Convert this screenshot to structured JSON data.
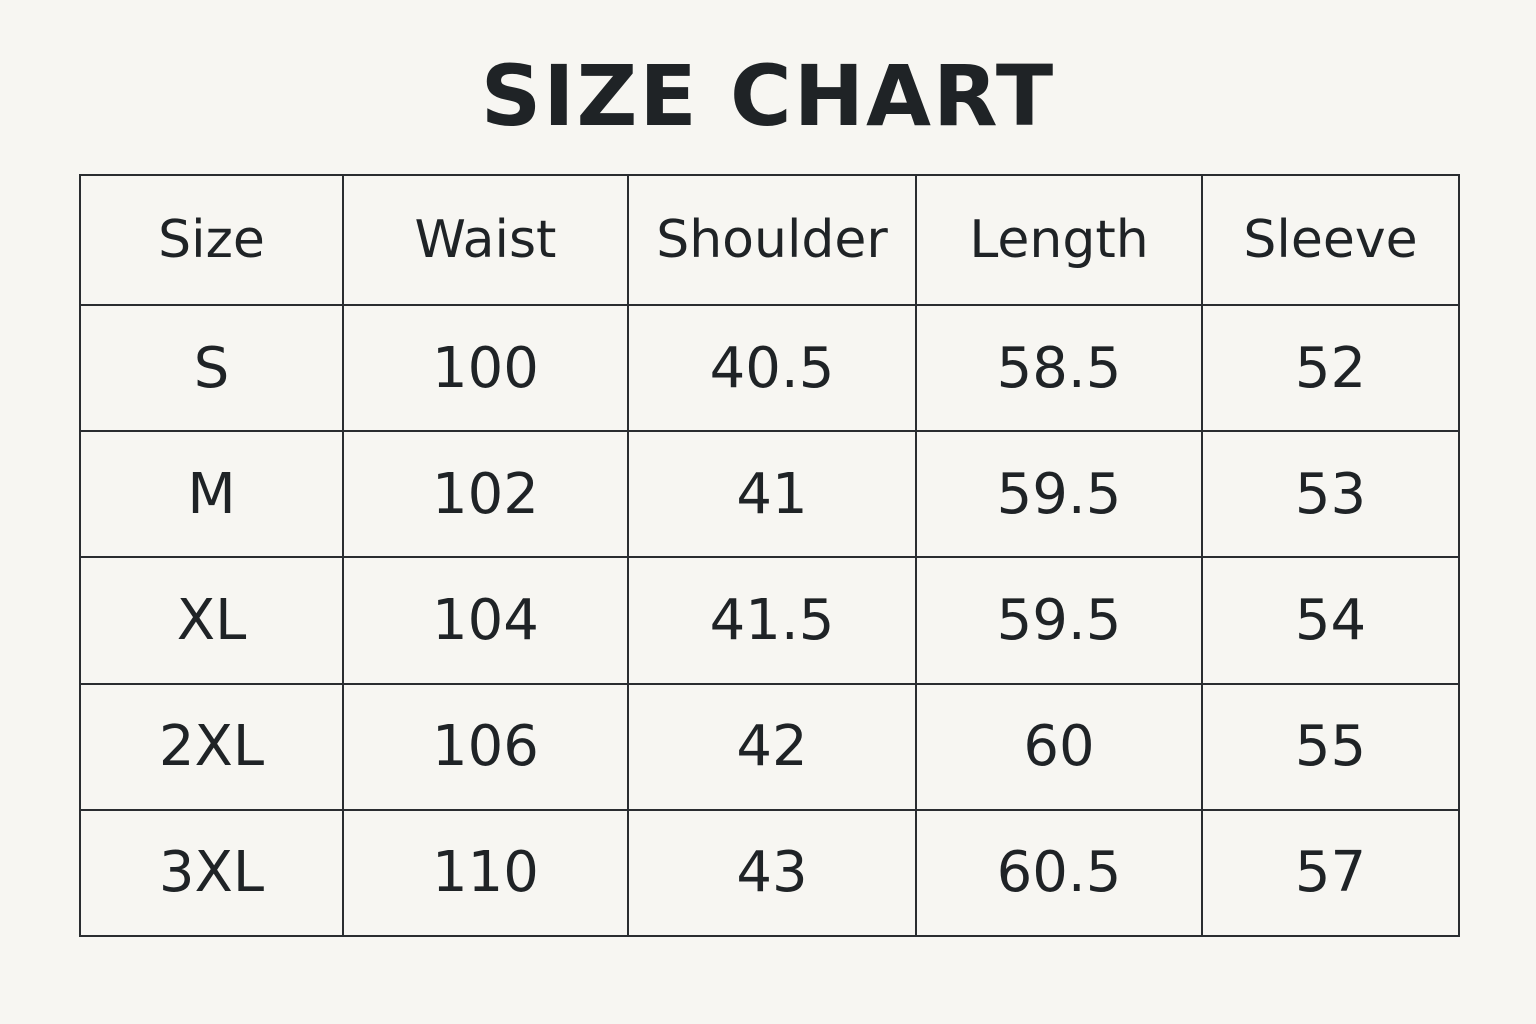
{
  "chart_data": {
    "type": "table",
    "title": "SIZE CHART",
    "columns": [
      "Size",
      "Waist",
      "Shoulder",
      "Length",
      "Sleeve"
    ],
    "rows": [
      [
        "S",
        "100",
        "40.5",
        "58.5",
        "52"
      ],
      [
        "M",
        "102",
        "41",
        "59.5",
        "53"
      ],
      [
        "XL",
        "104",
        "41.5",
        "59.5",
        "54"
      ],
      [
        "2XL",
        "106",
        "42",
        "60",
        "55"
      ],
      [
        "3XL",
        "110",
        "43",
        "60.5",
        "57"
      ]
    ]
  },
  "colors": {
    "background": "#f7f6f2",
    "text": "#1f2326",
    "border": "#2a2d30"
  }
}
